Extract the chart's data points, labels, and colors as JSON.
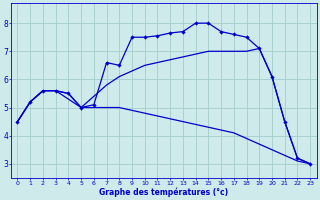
{
  "xlabel": "Graphe des températures (°c)",
  "background_color": "#ceeaea",
  "grid_color": "#aad0d0",
  "line_color": "#0000cc",
  "xlim": [
    -0.5,
    23.5
  ],
  "ylim": [
    2.5,
    8.7
  ],
  "xticks": [
    0,
    1,
    2,
    3,
    4,
    5,
    6,
    7,
    8,
    9,
    10,
    11,
    12,
    13,
    14,
    15,
    16,
    17,
    18,
    19,
    20,
    21,
    22,
    23
  ],
  "yticks": [
    3,
    4,
    5,
    6,
    7,
    8
  ],
  "line1_x": [
    0,
    1,
    2,
    3,
    4,
    5,
    6,
    7,
    8,
    9,
    10,
    11,
    12,
    13,
    14,
    15,
    16,
    17,
    18,
    19,
    20,
    21,
    22,
    23
  ],
  "line1_y": [
    4.5,
    5.2,
    5.6,
    5.6,
    5.5,
    5.0,
    5.1,
    6.6,
    6.5,
    7.5,
    7.5,
    7.55,
    7.65,
    7.7,
    8.0,
    8.0,
    7.7,
    7.6,
    7.5,
    7.1,
    6.1,
    4.5,
    3.2,
    3.0
  ],
  "line2_x": [
    0,
    1,
    2,
    3,
    4,
    5,
    6,
    7,
    8,
    9,
    10,
    11,
    12,
    13,
    14,
    15,
    16,
    17,
    18,
    19,
    20,
    21,
    22,
    23
  ],
  "line2_y": [
    4.5,
    5.2,
    5.6,
    5.6,
    5.5,
    5.0,
    5.4,
    5.8,
    6.1,
    6.3,
    6.5,
    6.6,
    6.7,
    6.8,
    6.9,
    7.0,
    7.0,
    7.0,
    7.0,
    7.1,
    6.1,
    4.5,
    3.2,
    3.0
  ],
  "line3_x": [
    0,
    1,
    2,
    3,
    4,
    5,
    6,
    7,
    8,
    9,
    10,
    11,
    12,
    13,
    14,
    15,
    16,
    17,
    18,
    19,
    20,
    21,
    22,
    23
  ],
  "line3_y": [
    4.5,
    5.2,
    5.6,
    5.6,
    5.3,
    5.0,
    5.0,
    5.0,
    5.0,
    4.9,
    4.8,
    4.7,
    4.6,
    4.5,
    4.4,
    4.3,
    4.2,
    4.1,
    3.9,
    3.7,
    3.5,
    3.3,
    3.1,
    3.0
  ],
  "figsize": [
    3.2,
    2.0
  ],
  "dpi": 100
}
